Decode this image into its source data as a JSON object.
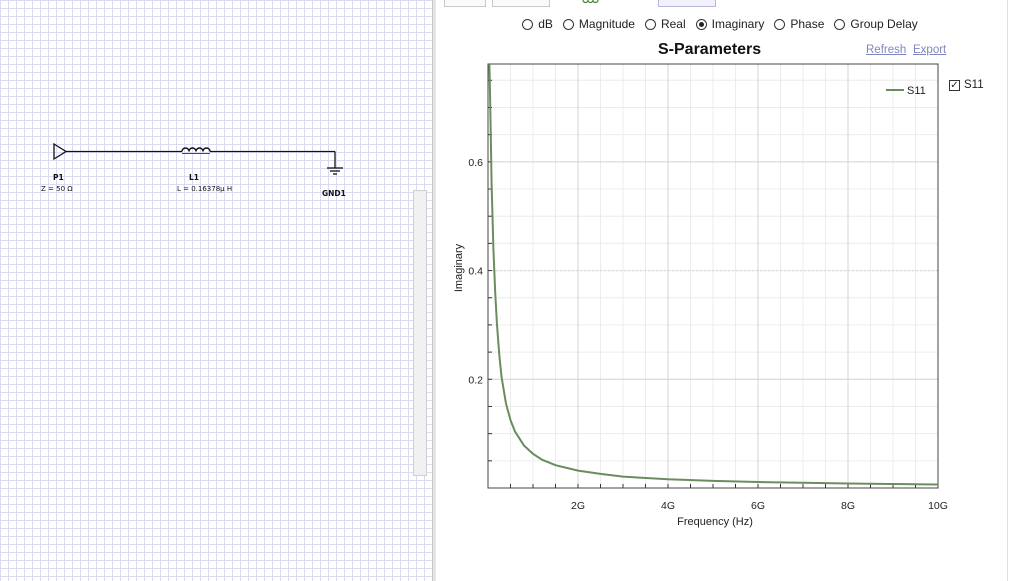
{
  "schematic": {
    "port": {
      "name": "P1",
      "value": "Z = 50 Ω"
    },
    "inductor": {
      "name": "L1",
      "value": "L = 0.16378μ H"
    },
    "ground": {
      "name": "GND1"
    }
  },
  "view_options": {
    "selected": "Imaginary",
    "options": [
      "dB",
      "Magnitude",
      "Real",
      "Imaginary",
      "Phase",
      "Group Delay"
    ]
  },
  "chart_header": {
    "title": "S-Parameters",
    "refresh_label": "Refresh",
    "export_label": "Export"
  },
  "series_toggle": {
    "label": "S11",
    "checked": true
  },
  "colors": {
    "series": "#6b8c5f",
    "grid": "#d4d4d4",
    "link": "#7f86c0",
    "schematic_grid": "#d9dbf3"
  },
  "chart_data": {
    "type": "line",
    "title": "S-Parameters",
    "xlabel": "Frequency (Hz)",
    "ylabel": "Imaginary",
    "xlim": [
      0,
      10000000000
    ],
    "ylim": [
      0,
      0.78
    ],
    "xticks": [
      2000000000,
      4000000000,
      6000000000,
      8000000000,
      10000000000
    ],
    "xtick_labels": [
      "2G",
      "4G",
      "6G",
      "8G",
      "10G"
    ],
    "yticks": [
      0.2,
      0.4,
      0.6
    ],
    "ytick_labels": [
      "0.2",
      "0.4",
      "0.6"
    ],
    "grid": true,
    "legend": "top-right",
    "series": [
      {
        "name": "S11",
        "x": [
          30000000,
          50000000,
          80000000,
          120000000,
          160000000,
          200000000,
          250000000,
          300000000,
          400000000,
          500000000,
          600000000,
          800000000,
          1000000000,
          1200000000,
          1500000000,
          2000000000,
          2500000000,
          3000000000,
          4000000000,
          5000000000,
          6000000000,
          7000000000,
          8000000000,
          9000000000,
          10000000000
        ],
        "y": [
          0.78,
          0.7,
          0.56,
          0.44,
          0.36,
          0.3,
          0.245,
          0.205,
          0.155,
          0.125,
          0.104,
          0.078,
          0.063,
          0.052,
          0.042,
          0.032,
          0.026,
          0.021,
          0.016,
          0.013,
          0.011,
          0.0095,
          0.0082,
          0.0073,
          0.0065
        ]
      }
    ]
  }
}
